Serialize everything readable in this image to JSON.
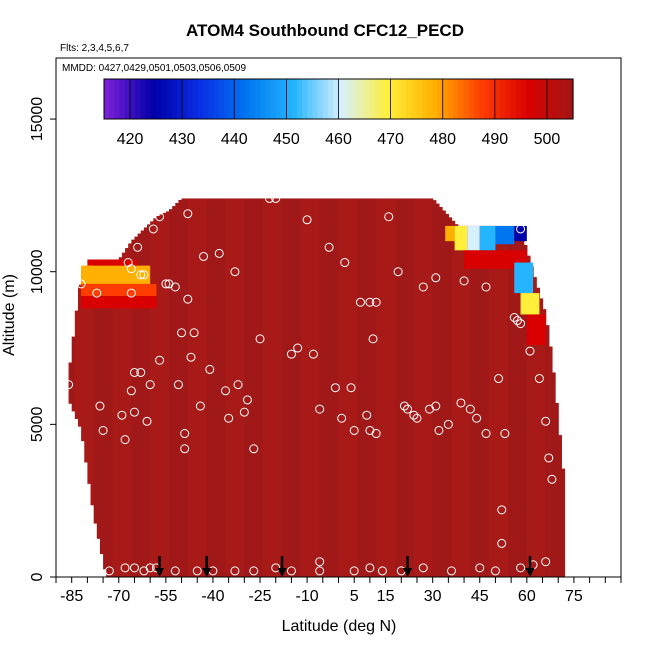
{
  "chart_data": {
    "type": "heatmap",
    "title": "ATOM4 Southbound CFC12_PECD",
    "subtitle_flights": "Flts: 2,3,4,5,6,7",
    "subtitle_dates": "MMDD: 0427,0429,0501,0503,0506,0509",
    "xlabel": "Latitude (deg N)",
    "ylabel": "Altitude (m)",
    "xlim": [
      -90,
      90
    ],
    "ylim": [
      0,
      17000
    ],
    "x_ticks": [
      -85,
      -70,
      -55,
      -40,
      -25,
      -10,
      5,
      15,
      30,
      45,
      60,
      75
    ],
    "x_tick_labels": [
      "-85",
      "-70",
      "-55",
      "-40",
      "-25",
      "-10",
      "5",
      "15",
      "30",
      "45",
      "60",
      "75"
    ],
    "x_minor_step": 5,
    "y_ticks": [
      0,
      5000,
      10000,
      15000
    ],
    "y_tick_labels": [
      "0",
      "5000",
      "10000",
      "15000"
    ],
    "colorbar": {
      "min": 415,
      "max": 505,
      "ticks": [
        420,
        430,
        440,
        450,
        460,
        470,
        480,
        490,
        500
      ],
      "tick_labels": [
        "420",
        "430",
        "440",
        "450",
        "460",
        "470",
        "480",
        "490",
        "500"
      ],
      "colors": [
        "#7a1fd6",
        "#0000a8",
        "#0a2ee6",
        "#0077f0",
        "#25b5ff",
        "#d7f0ff",
        "#ffef3a",
        "#ffb000",
        "#ff3d00",
        "#d80000",
        "#a01818"
      ]
    },
    "background_value": 501,
    "profiles": [
      {
        "lat": -86,
        "bottom": 5800,
        "top": 6600
      },
      {
        "lat": -82,
        "bottom": 4800,
        "top": 10000
      },
      {
        "lat": -78,
        "bottom": 2000,
        "top": 10200
      },
      {
        "lat": -74,
        "bottom": 0,
        "top": 10400
      },
      {
        "lat": -70,
        "bottom": 0,
        "top": 10400
      },
      {
        "lat": -66,
        "bottom": 0,
        "top": 11000
      },
      {
        "lat": -62,
        "bottom": 0,
        "top": 11400
      },
      {
        "lat": -58,
        "bottom": 0,
        "top": 11800
      },
      {
        "lat": -54,
        "bottom": 0,
        "top": 12000
      },
      {
        "lat": -50,
        "bottom": 0,
        "top": 12400
      },
      {
        "lat": 30,
        "bottom": 0,
        "top": 12400
      },
      {
        "lat": 38,
        "bottom": 0,
        "top": 11500
      },
      {
        "lat": 50,
        "bottom": 0,
        "top": 11500
      },
      {
        "lat": 58,
        "bottom": 0,
        "top": 11400
      },
      {
        "lat": 62,
        "bottom": 0,
        "top": 10000
      },
      {
        "lat": 66,
        "bottom": 0,
        "top": 8600
      },
      {
        "lat": 68,
        "bottom": 0,
        "top": 7200
      },
      {
        "lat": 70,
        "bottom": 0,
        "top": 5200
      },
      {
        "lat": 72,
        "bottom": 0,
        "top": 3000
      }
    ],
    "low_value_patches": [
      {
        "lat_min": -82,
        "lat_max": -60,
        "alt_min": 9600,
        "alt_max": 10200,
        "value": 479
      },
      {
        "lat_min": -82,
        "lat_max": -58,
        "alt_min": 9200,
        "alt_max": 9600,
        "value": 487
      },
      {
        "lat_min": -82,
        "lat_max": -58,
        "alt_min": 8800,
        "alt_max": 9200,
        "value": 493
      },
      {
        "lat_min": -80,
        "lat_max": -64,
        "alt_min": 10200,
        "alt_max": 10400,
        "value": 495
      },
      {
        "lat_min": 34,
        "lat_max": 37,
        "alt_min": 11000,
        "alt_max": 11500,
        "value": 478
      },
      {
        "lat_min": 37,
        "lat_max": 41,
        "alt_min": 10700,
        "alt_max": 11500,
        "value": 472
      },
      {
        "lat_min": 41,
        "lat_max": 45,
        "alt_min": 10700,
        "alt_max": 11500,
        "value": 462
      },
      {
        "lat_min": 45,
        "lat_max": 50,
        "alt_min": 10700,
        "alt_max": 11500,
        "value": 450
      },
      {
        "lat_min": 50,
        "lat_max": 56,
        "alt_min": 10900,
        "alt_max": 11500,
        "value": 440
      },
      {
        "lat_min": 56,
        "lat_max": 60,
        "alt_min": 11000,
        "alt_max": 11500,
        "value": 428
      },
      {
        "lat_min": 40,
        "lat_max": 60,
        "alt_min": 10100,
        "alt_max": 10700,
        "value": 490
      },
      {
        "lat_min": 56,
        "lat_max": 62,
        "alt_min": 9300,
        "alt_max": 10300,
        "value": 452
      },
      {
        "lat_min": 58,
        "lat_max": 64,
        "alt_min": 8600,
        "alt_max": 9300,
        "value": 470
      },
      {
        "lat_min": 60,
        "lat_max": 66,
        "alt_min": 7600,
        "alt_max": 8600,
        "value": 492
      }
    ],
    "sample_points": [
      {
        "lat": -86,
        "alt": 6300
      },
      {
        "lat": -84,
        "alt": 9600
      },
      {
        "lat": -82,
        "alt": 9600
      },
      {
        "lat": -77,
        "alt": 9300
      },
      {
        "lat": -76,
        "alt": 5600
      },
      {
        "lat": -75,
        "alt": 4800
      },
      {
        "lat": -73,
        "alt": 200
      },
      {
        "lat": -69,
        "alt": 5300
      },
      {
        "lat": -68,
        "alt": 4500
      },
      {
        "lat": -67,
        "alt": 10300
      },
      {
        "lat": -66,
        "alt": 10100
      },
      {
        "lat": -66,
        "alt": 9300
      },
      {
        "lat": -66,
        "alt": 6100
      },
      {
        "lat": -65,
        "alt": 6700
      },
      {
        "lat": -65,
        "alt": 5400
      },
      {
        "lat": -65,
        "alt": 300
      },
      {
        "lat": -64,
        "alt": 10800
      },
      {
        "lat": -63,
        "alt": 9900
      },
      {
        "lat": -63,
        "alt": 6700
      },
      {
        "lat": -62,
        "alt": 9900
      },
      {
        "lat": -61,
        "alt": 5100
      },
      {
        "lat": -60,
        "alt": 6300
      },
      {
        "lat": -60,
        "alt": 300
      },
      {
        "lat": -59,
        "alt": 11400
      },
      {
        "lat": -57,
        "alt": 7100
      },
      {
        "lat": -57,
        "alt": 11800
      },
      {
        "lat": -55,
        "alt": 9600
      },
      {
        "lat": -54,
        "alt": 9600
      },
      {
        "lat": -52,
        "alt": 9500
      },
      {
        "lat": -51,
        "alt": 6300
      },
      {
        "lat": -50,
        "alt": 8000
      },
      {
        "lat": -49,
        "alt": 4700
      },
      {
        "lat": -49,
        "alt": 4200
      },
      {
        "lat": -48,
        "alt": 11900
      },
      {
        "lat": -48,
        "alt": 9100
      },
      {
        "lat": -47,
        "alt": 7200
      },
      {
        "lat": -46,
        "alt": 8000
      },
      {
        "lat": -45,
        "alt": 200
      },
      {
        "lat": -44,
        "alt": 5600
      },
      {
        "lat": -43,
        "alt": 10500
      },
      {
        "lat": -41,
        "alt": 6800
      },
      {
        "lat": -38,
        "alt": 10600
      },
      {
        "lat": -36,
        "alt": 6100
      },
      {
        "lat": -35,
        "alt": 5200
      },
      {
        "lat": -33,
        "alt": 10000
      },
      {
        "lat": -32,
        "alt": 6300
      },
      {
        "lat": -30,
        "alt": 5400
      },
      {
        "lat": -29,
        "alt": 5800
      },
      {
        "lat": -27,
        "alt": 4200
      },
      {
        "lat": -25,
        "alt": 7800
      },
      {
        "lat": -22,
        "alt": 12400
      },
      {
        "lat": -20,
        "alt": 12400
      },
      {
        "lat": -15,
        "alt": 7300
      },
      {
        "lat": -13,
        "alt": 7500
      },
      {
        "lat": -10,
        "alt": 11700
      },
      {
        "lat": -8,
        "alt": 7300
      },
      {
        "lat": -6,
        "alt": 5500
      },
      {
        "lat": -6,
        "alt": 500
      },
      {
        "lat": -3,
        "alt": 10800
      },
      {
        "lat": -1,
        "alt": 6200
      },
      {
        "lat": 1,
        "alt": 5200
      },
      {
        "lat": 2,
        "alt": 10300
      },
      {
        "lat": 4,
        "alt": 6200
      },
      {
        "lat": 5,
        "alt": 4800
      },
      {
        "lat": 7,
        "alt": 9000
      },
      {
        "lat": 9,
        "alt": 5300
      },
      {
        "lat": 10,
        "alt": 4800
      },
      {
        "lat": 10,
        "alt": 9000
      },
      {
        "lat": 11,
        "alt": 7800
      },
      {
        "lat": 12,
        "alt": 4700
      },
      {
        "lat": 12,
        "alt": 9000
      },
      {
        "lat": 16,
        "alt": 11800
      },
      {
        "lat": 19,
        "alt": 10000
      },
      {
        "lat": 21,
        "alt": 5600
      },
      {
        "lat": 22,
        "alt": 5500
      },
      {
        "lat": 24,
        "alt": 5300
      },
      {
        "lat": 25,
        "alt": 5200
      },
      {
        "lat": 27,
        "alt": 9500
      },
      {
        "lat": 29,
        "alt": 5500
      },
      {
        "lat": 31,
        "alt": 9800
      },
      {
        "lat": 31,
        "alt": 5600
      },
      {
        "lat": 32,
        "alt": 4800
      },
      {
        "lat": 35,
        "alt": 5000
      },
      {
        "lat": 39,
        "alt": 5700
      },
      {
        "lat": 40,
        "alt": 9700
      },
      {
        "lat": 42,
        "alt": 5500
      },
      {
        "lat": 44,
        "alt": 5200
      },
      {
        "lat": 47,
        "alt": 9500
      },
      {
        "lat": 47,
        "alt": 4700
      },
      {
        "lat": 51,
        "alt": 6500
      },
      {
        "lat": 52,
        "alt": 2200
      },
      {
        "lat": 52,
        "alt": 1100
      },
      {
        "lat": 53,
        "alt": 4700
      },
      {
        "lat": 56,
        "alt": 8500
      },
      {
        "lat": 57,
        "alt": 8400
      },
      {
        "lat": 58,
        "alt": 11400
      },
      {
        "lat": 58,
        "alt": 8300
      },
      {
        "lat": 61,
        "alt": 7400
      },
      {
        "lat": 64,
        "alt": 6500
      },
      {
        "lat": 66,
        "alt": 5100
      },
      {
        "lat": 67,
        "alt": 3900
      },
      {
        "lat": 68,
        "alt": 3200
      },
      {
        "lat": 62,
        "alt": 400
      },
      {
        "lat": 66,
        "alt": 500
      },
      {
        "lat": 58,
        "alt": 300
      },
      {
        "lat": 50,
        "alt": 200
      },
      {
        "lat": 45,
        "alt": 300
      },
      {
        "lat": 36,
        "alt": 200
      },
      {
        "lat": 27,
        "alt": 300
      },
      {
        "lat": 20,
        "alt": 200
      },
      {
        "lat": 14,
        "alt": 200
      },
      {
        "lat": 10,
        "alt": 300
      },
      {
        "lat": 5,
        "alt": 200
      },
      {
        "lat": -6,
        "alt": 200
      },
      {
        "lat": -15,
        "alt": 200
      },
      {
        "lat": -20,
        "alt": 300
      },
      {
        "lat": -27,
        "alt": 200
      },
      {
        "lat": -33,
        "alt": 200
      },
      {
        "lat": -40,
        "alt": 200
      },
      {
        "lat": -52,
        "alt": 200
      },
      {
        "lat": -58,
        "alt": 300
      },
      {
        "lat": -62,
        "alt": 200
      },
      {
        "lat": -68,
        "alt": 300
      }
    ],
    "arrow_latitudes": [
      -57,
      -42,
      -18,
      22,
      61
    ]
  }
}
